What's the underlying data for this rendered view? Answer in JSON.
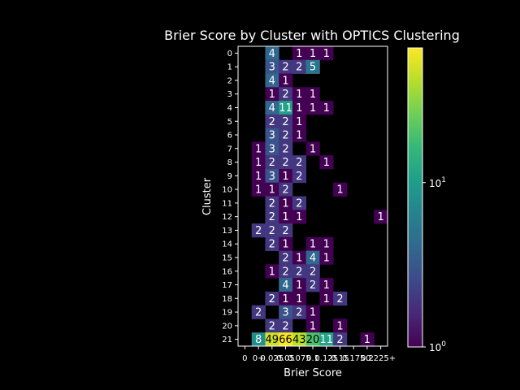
{
  "chart_data": {
    "type": "heatmap",
    "title": "Brier Score by Cluster with OPTICS Clustering",
    "xlabel": "Brier Score",
    "ylabel": "Cluster",
    "x_categories": [
      "0",
      "0+",
      "0.025",
      "0.05",
      "0.075",
      "0.1",
      "0.125",
      "0.15",
      "0.175",
      "0.2",
      "0.225+"
    ],
    "y_categories": [
      "0",
      "1",
      "2",
      "3",
      "4",
      "5",
      "6",
      "7",
      "8",
      "9",
      "10",
      "11",
      "12",
      "13",
      "14",
      "15",
      "16",
      "17",
      "18",
      "19",
      "20",
      "21"
    ],
    "colorbar": {
      "scale": "log",
      "range": [
        1,
        66
      ],
      "ticks": [
        "10^0",
        "10^1"
      ]
    },
    "colormap": [
      "#440154",
      "#482878",
      "#3e4989",
      "#31688e",
      "#26828e",
      "#1f9e89",
      "#35b779",
      "#6ece58",
      "#b5de2b",
      "#fde725"
    ],
    "cells": [
      {
        "row": 0,
        "col": 2,
        "value": 4
      },
      {
        "row": 0,
        "col": 4,
        "value": 1
      },
      {
        "row": 0,
        "col": 5,
        "value": 1
      },
      {
        "row": 0,
        "col": 6,
        "value": 1
      },
      {
        "row": 1,
        "col": 2,
        "value": 3
      },
      {
        "row": 1,
        "col": 3,
        "value": 2
      },
      {
        "row": 1,
        "col": 4,
        "value": 2
      },
      {
        "row": 1,
        "col": 5,
        "value": 5
      },
      {
        "row": 2,
        "col": 2,
        "value": 4
      },
      {
        "row": 2,
        "col": 3,
        "value": 1
      },
      {
        "row": 3,
        "col": 2,
        "value": 1
      },
      {
        "row": 3,
        "col": 3,
        "value": 2
      },
      {
        "row": 3,
        "col": 4,
        "value": 1
      },
      {
        "row": 3,
        "col": 5,
        "value": 1
      },
      {
        "row": 4,
        "col": 2,
        "value": 4
      },
      {
        "row": 4,
        "col": 3,
        "value": 11
      },
      {
        "row": 4,
        "col": 4,
        "value": 1
      },
      {
        "row": 4,
        "col": 5,
        "value": 1
      },
      {
        "row": 4,
        "col": 6,
        "value": 1
      },
      {
        "row": 5,
        "col": 2,
        "value": 2
      },
      {
        "row": 5,
        "col": 3,
        "value": 2
      },
      {
        "row": 5,
        "col": 4,
        "value": 1
      },
      {
        "row": 6,
        "col": 2,
        "value": 3
      },
      {
        "row": 6,
        "col": 3,
        "value": 2
      },
      {
        "row": 6,
        "col": 4,
        "value": 1
      },
      {
        "row": 7,
        "col": 1,
        "value": 1
      },
      {
        "row": 7,
        "col": 2,
        "value": 3
      },
      {
        "row": 7,
        "col": 3,
        "value": 2
      },
      {
        "row": 7,
        "col": 5,
        "value": 1
      },
      {
        "row": 8,
        "col": 1,
        "value": 1
      },
      {
        "row": 8,
        "col": 2,
        "value": 2
      },
      {
        "row": 8,
        "col": 3,
        "value": 2
      },
      {
        "row": 8,
        "col": 4,
        "value": 2
      },
      {
        "row": 8,
        "col": 6,
        "value": 1
      },
      {
        "row": 9,
        "col": 1,
        "value": 1
      },
      {
        "row": 9,
        "col": 2,
        "value": 3
      },
      {
        "row": 9,
        "col": 3,
        "value": 1
      },
      {
        "row": 9,
        "col": 4,
        "value": 2
      },
      {
        "row": 10,
        "col": 1,
        "value": 1
      },
      {
        "row": 10,
        "col": 2,
        "value": 1
      },
      {
        "row": 10,
        "col": 3,
        "value": 2
      },
      {
        "row": 10,
        "col": 7,
        "value": 1
      },
      {
        "row": 11,
        "col": 2,
        "value": 2
      },
      {
        "row": 11,
        "col": 3,
        "value": 1
      },
      {
        "row": 11,
        "col": 4,
        "value": 2
      },
      {
        "row": 12,
        "col": 2,
        "value": 2
      },
      {
        "row": 12,
        "col": 3,
        "value": 1
      },
      {
        "row": 12,
        "col": 4,
        "value": 1
      },
      {
        "row": 12,
        "col": 10,
        "value": 1
      },
      {
        "row": 13,
        "col": 1,
        "value": 2
      },
      {
        "row": 13,
        "col": 2,
        "value": 2
      },
      {
        "row": 13,
        "col": 3,
        "value": 2
      },
      {
        "row": 14,
        "col": 2,
        "value": 2
      },
      {
        "row": 14,
        "col": 3,
        "value": 1
      },
      {
        "row": 14,
        "col": 5,
        "value": 1
      },
      {
        "row": 14,
        "col": 6,
        "value": 1
      },
      {
        "row": 15,
        "col": 3,
        "value": 2
      },
      {
        "row": 15,
        "col": 4,
        "value": 1
      },
      {
        "row": 15,
        "col": 5,
        "value": 4
      },
      {
        "row": 15,
        "col": 6,
        "value": 1
      },
      {
        "row": 16,
        "col": 2,
        "value": 1
      },
      {
        "row": 16,
        "col": 3,
        "value": 2
      },
      {
        "row": 16,
        "col": 4,
        "value": 2
      },
      {
        "row": 16,
        "col": 5,
        "value": 2
      },
      {
        "row": 17,
        "col": 3,
        "value": 4
      },
      {
        "row": 17,
        "col": 4,
        "value": 1
      },
      {
        "row": 17,
        "col": 5,
        "value": 2
      },
      {
        "row": 17,
        "col": 6,
        "value": 1
      },
      {
        "row": 18,
        "col": 2,
        "value": 2
      },
      {
        "row": 18,
        "col": 3,
        "value": 1
      },
      {
        "row": 18,
        "col": 4,
        "value": 1
      },
      {
        "row": 18,
        "col": 6,
        "value": 1
      },
      {
        "row": 18,
        "col": 7,
        "value": 2
      },
      {
        "row": 19,
        "col": 1,
        "value": 2
      },
      {
        "row": 19,
        "col": 3,
        "value": 3
      },
      {
        "row": 19,
        "col": 4,
        "value": 2
      },
      {
        "row": 19,
        "col": 5,
        "value": 1
      },
      {
        "row": 20,
        "col": 2,
        "value": 2
      },
      {
        "row": 20,
        "col": 3,
        "value": 2
      },
      {
        "row": 20,
        "col": 5,
        "value": 1
      },
      {
        "row": 20,
        "col": 7,
        "value": 1
      },
      {
        "row": 21,
        "col": 1,
        "value": 8
      },
      {
        "row": 21,
        "col": 2,
        "value": 49
      },
      {
        "row": 21,
        "col": 3,
        "value": 66
      },
      {
        "row": 21,
        "col": 4,
        "value": 43
      },
      {
        "row": 21,
        "col": 5,
        "value": 20
      },
      {
        "row": 21,
        "col": 6,
        "value": 11
      },
      {
        "row": 21,
        "col": 7,
        "value": 2
      },
      {
        "row": 21,
        "col": 9,
        "value": 1
      }
    ]
  }
}
